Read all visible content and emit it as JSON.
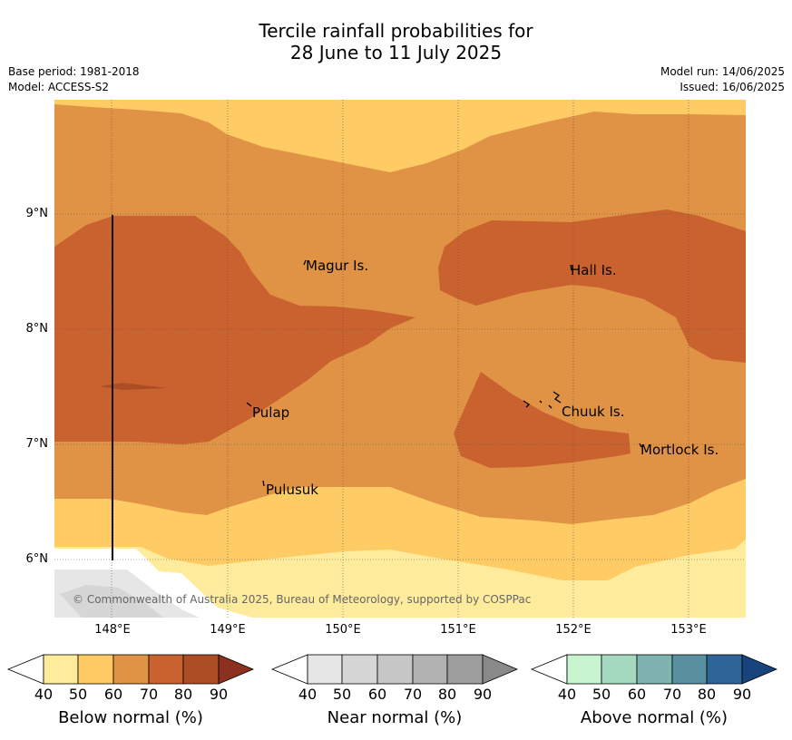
{
  "title_line1": "Tercile rainfall probabilities for",
  "title_line2": "28 June to 11 July 2025",
  "meta_left": [
    "Base period: 1981-2018",
    "Model: ACCESS-S2"
  ],
  "meta_right": [
    "Model run: 14/06/2025",
    "Issued: 16/06/2025"
  ],
  "lat_labels": [
    "9°N",
    "8°N",
    "7°N",
    "6°N"
  ],
  "lon_labels": [
    "148°E",
    "149°E",
    "150°E",
    "151°E",
    "152°E",
    "153°E"
  ],
  "places": [
    "Magur Is.",
    "Hall Is.",
    "Pulap",
    "Chuuk Is.",
    "Mortlock Is.",
    "Pulusuk"
  ],
  "copyright": "© Commonwealth of Australia 2025, Bureau of Meteorology, supported by COSPPac",
  "colorbars": [
    {
      "title": "Below normal (%)",
      "ticks": [
        "40",
        "50",
        "60",
        "70",
        "80",
        "90"
      ],
      "colors": [
        "#ffeb9c",
        "#fecb65",
        "#e09344",
        "#c9622f",
        "#ad4d26",
        "#8c3020"
      ]
    },
    {
      "title": "Near normal (%)",
      "ticks": [
        "40",
        "50",
        "60",
        "70",
        "80",
        "90"
      ],
      "colors": [
        "#e6e6e6",
        "#d6d6d6",
        "#c6c6c6",
        "#b2b2b2",
        "#9e9e9e",
        "#898989"
      ]
    },
    {
      "title": "Above normal (%)",
      "ticks": [
        "40",
        "50",
        "60",
        "70",
        "80",
        "90"
      ],
      "colors": [
        "#c8f5d0",
        "#a4d9c0",
        "#7eb3b0",
        "#5a91a1",
        "#2f6499",
        "#17447c"
      ]
    }
  ]
}
